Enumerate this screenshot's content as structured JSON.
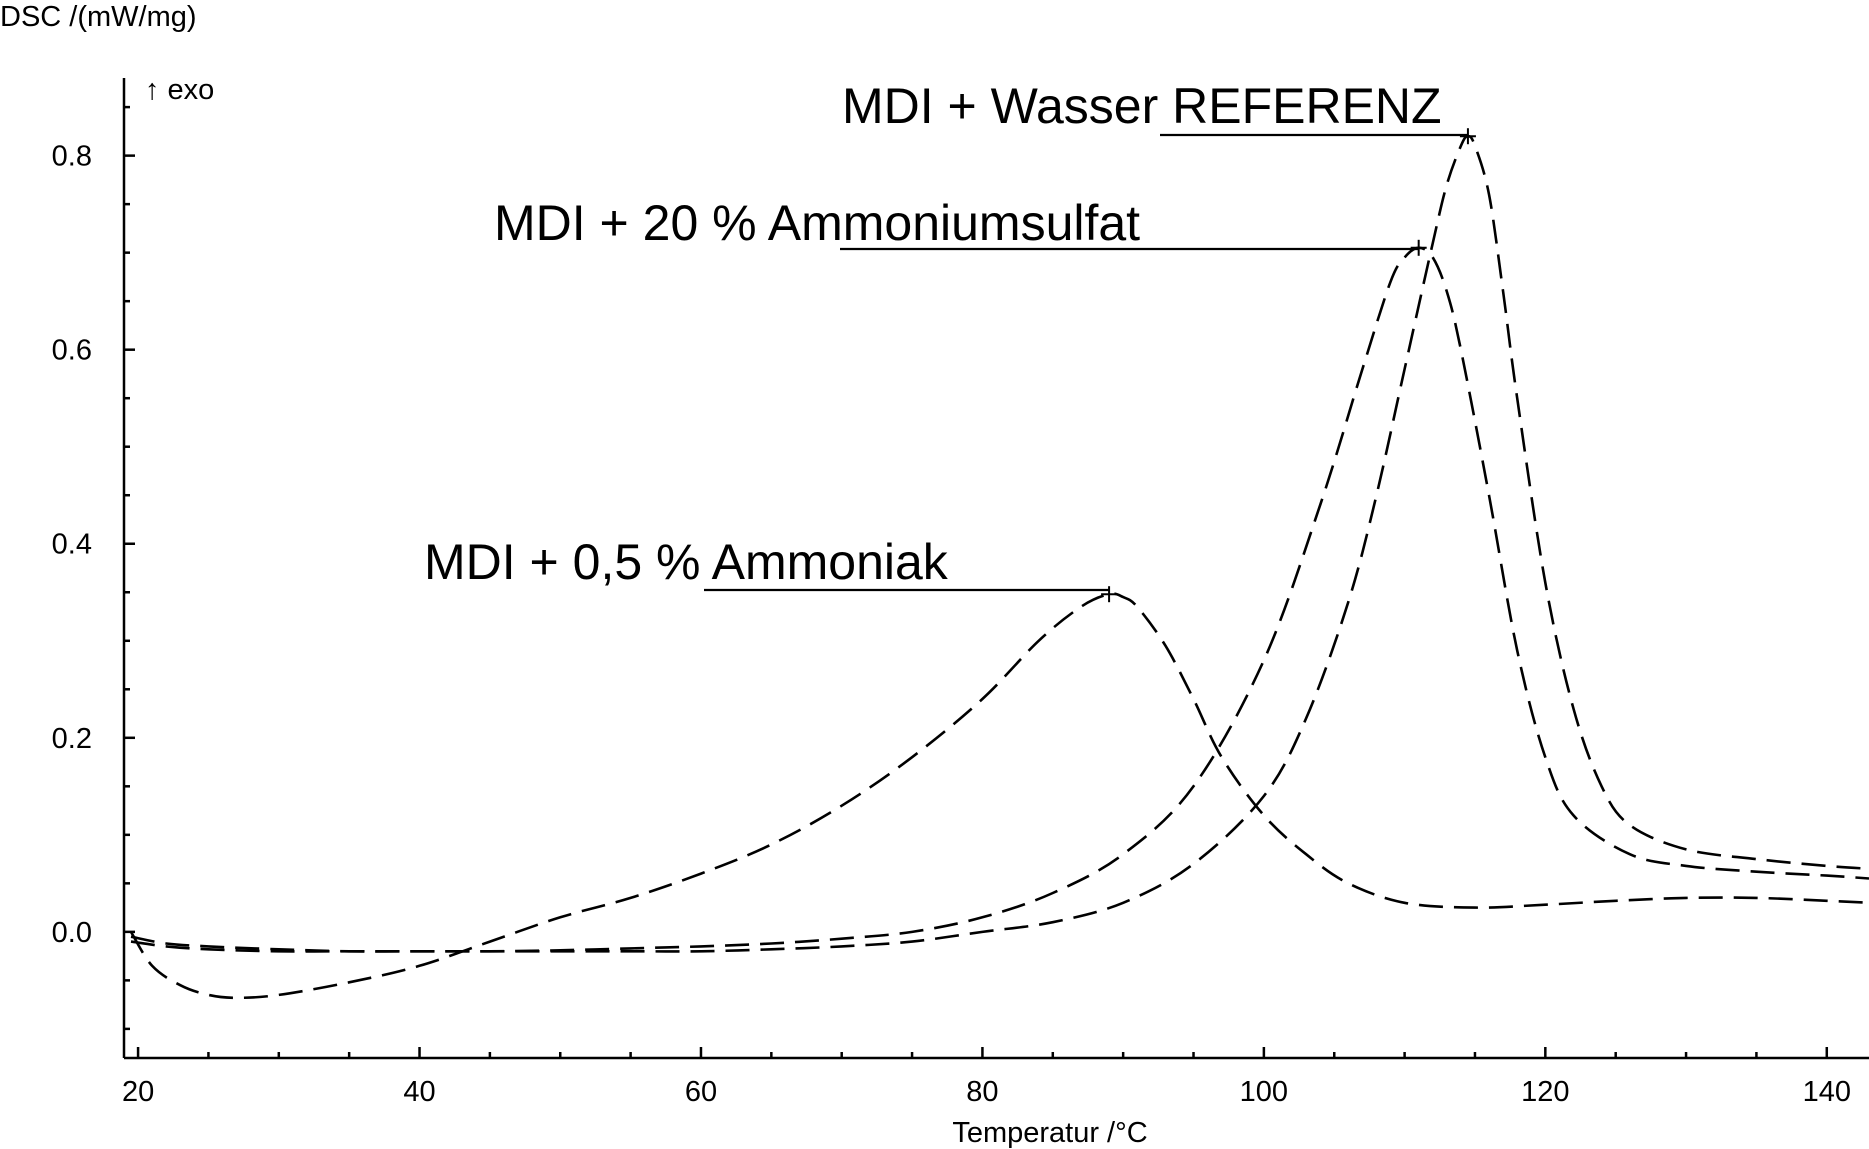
{
  "chart_data": {
    "type": "line",
    "title": "",
    "xlabel": "Temperatur /°C",
    "ylabel": "DSC /(mW/mg)",
    "y_annotation": "↑ exo",
    "xlim": [
      19,
      143
    ],
    "ylim": [
      -0.13,
      0.88
    ],
    "x_ticks": [
      20,
      40,
      60,
      80,
      100,
      120,
      140
    ],
    "y_ticks": [
      0.0,
      0.2,
      0.4,
      0.6,
      0.8
    ],
    "grid": false,
    "series": [
      {
        "name": "MDI + Wasser REFERENZ",
        "peak": [
          114.5,
          0.82
        ],
        "x": [
          19.5,
          22,
          25,
          30,
          35,
          40,
          45,
          50,
          55,
          60,
          65,
          70,
          75,
          80,
          85,
          90,
          95,
          100,
          103,
          106,
          108,
          110,
          112,
          113,
          114,
          114.5,
          115,
          116,
          117,
          118,
          120,
          122,
          124,
          126,
          130,
          135,
          140,
          143
        ],
        "y": [
          -0.01,
          -0.015,
          -0.018,
          -0.02,
          -0.02,
          -0.02,
          -0.02,
          -0.02,
          -0.02,
          -0.02,
          -0.018,
          -0.015,
          -0.01,
          0.0,
          0.01,
          0.03,
          0.07,
          0.14,
          0.22,
          0.34,
          0.45,
          0.58,
          0.71,
          0.77,
          0.81,
          0.82,
          0.81,
          0.76,
          0.66,
          0.55,
          0.36,
          0.23,
          0.15,
          0.11,
          0.085,
          0.075,
          0.068,
          0.065
        ]
      },
      {
        "name": "MDI + 20 % Ammoniumsulfat",
        "peak": [
          111,
          0.705
        ],
        "x": [
          19.5,
          22,
          25,
          30,
          35,
          40,
          45,
          50,
          55,
          60,
          65,
          70,
          75,
          80,
          85,
          90,
          95,
          100,
          104,
          107,
          109,
          110,
          111,
          112,
          113,
          114,
          116,
          118,
          120,
          122,
          126,
          130,
          135,
          140,
          143
        ],
        "y": [
          -0.005,
          -0.012,
          -0.015,
          -0.018,
          -0.02,
          -0.02,
          -0.02,
          -0.019,
          -0.017,
          -0.015,
          -0.012,
          -0.007,
          0.0,
          0.015,
          0.04,
          0.08,
          0.15,
          0.28,
          0.44,
          0.58,
          0.67,
          0.695,
          0.705,
          0.695,
          0.66,
          0.6,
          0.45,
          0.29,
          0.18,
          0.12,
          0.08,
          0.068,
          0.062,
          0.058,
          0.055
        ]
      },
      {
        "name": "MDI + 0,5 % Ammoniak",
        "peak": [
          89,
          0.348
        ],
        "x": [
          19.5,
          21,
          23,
          25,
          27,
          30,
          35,
          40,
          45,
          50,
          55,
          60,
          65,
          70,
          75,
          80,
          84,
          87,
          89,
          90,
          91,
          93,
          95,
          97,
          100,
          103,
          106,
          110,
          115,
          120,
          125,
          130,
          135,
          140,
          143
        ],
        "y": [
          0.0,
          -0.035,
          -0.055,
          -0.065,
          -0.068,
          -0.065,
          -0.052,
          -0.035,
          -0.01,
          0.015,
          0.035,
          0.06,
          0.09,
          0.13,
          0.18,
          0.24,
          0.3,
          0.335,
          0.348,
          0.345,
          0.335,
          0.295,
          0.24,
          0.18,
          0.12,
          0.08,
          0.05,
          0.03,
          0.025,
          0.028,
          0.032,
          0.035,
          0.035,
          0.032,
          0.03
        ]
      }
    ]
  },
  "legend": {
    "label_0": "MDI + Wasser REFERENZ",
    "label_1": "MDI + 20 % Ammoniumsulfat",
    "label_2": "MDI + 0,5 % Ammoniak"
  }
}
